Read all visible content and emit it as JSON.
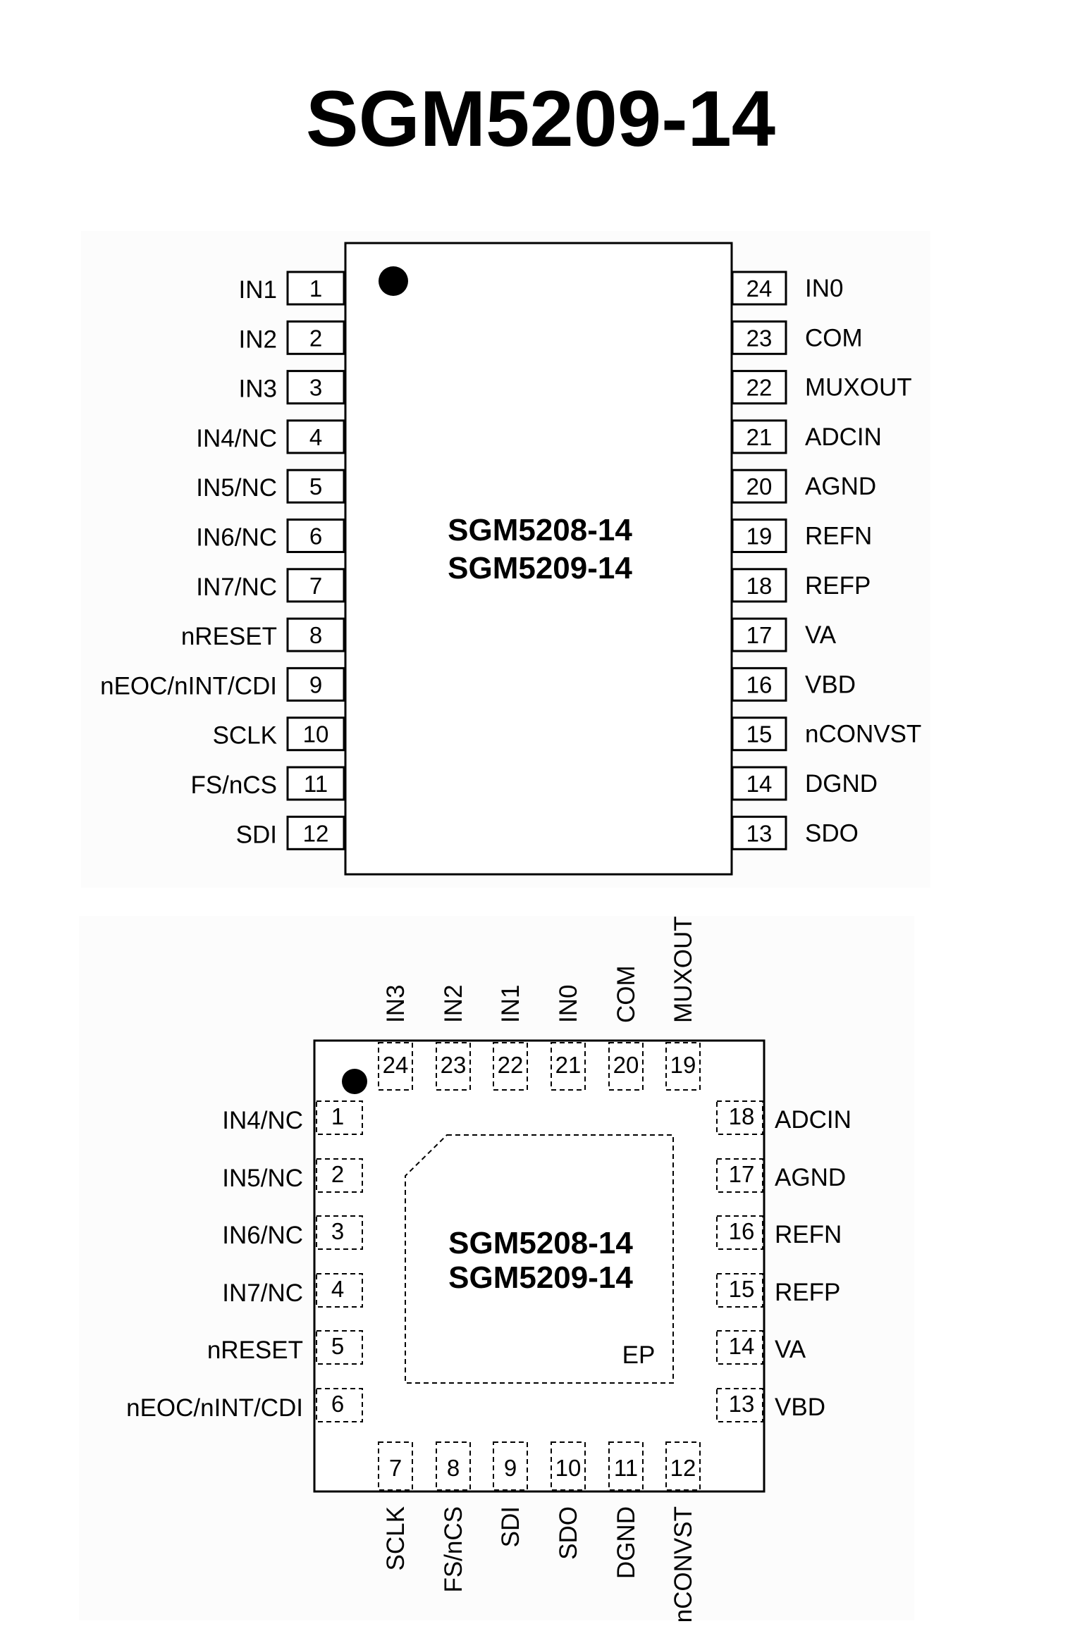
{
  "title": "SGM5209-14",
  "package_a": {
    "part_names": [
      "SGM5208-14",
      "SGM5209-14"
    ],
    "left_pins": [
      {
        "num": "1",
        "name": "IN1"
      },
      {
        "num": "2",
        "name": "IN2"
      },
      {
        "num": "3",
        "name": "IN3"
      },
      {
        "num": "4",
        "name": "IN4/NC"
      },
      {
        "num": "5",
        "name": "IN5/NC"
      },
      {
        "num": "6",
        "name": "IN6/NC"
      },
      {
        "num": "7",
        "name": "IN7/NC"
      },
      {
        "num": "8",
        "name": "nRESET"
      },
      {
        "num": "9",
        "name": "nEOC/nINT/CDI"
      },
      {
        "num": "10",
        "name": "SCLK"
      },
      {
        "num": "11",
        "name": "FS/nCS"
      },
      {
        "num": "12",
        "name": "SDI"
      }
    ],
    "right_pins": [
      {
        "num": "24",
        "name": "IN0"
      },
      {
        "num": "23",
        "name": "COM"
      },
      {
        "num": "22",
        "name": "MUXOUT"
      },
      {
        "num": "21",
        "name": "ADCIN"
      },
      {
        "num": "20",
        "name": "AGND"
      },
      {
        "num": "19",
        "name": "REFN"
      },
      {
        "num": "18",
        "name": "REFP"
      },
      {
        "num": "17",
        "name": "VA"
      },
      {
        "num": "16",
        "name": "VBD"
      },
      {
        "num": "15",
        "name": "nCONVST"
      },
      {
        "num": "14",
        "name": "DGND"
      },
      {
        "num": "13",
        "name": "SDO"
      }
    ]
  },
  "package_b": {
    "part_names": [
      "SGM5208-14",
      "SGM5209-14"
    ],
    "exposed_pad_label": "EP",
    "top_pins": [
      {
        "num": "24",
        "name": "IN3"
      },
      {
        "num": "23",
        "name": "IN2"
      },
      {
        "num": "22",
        "name": "IN1"
      },
      {
        "num": "21",
        "name": "IN0"
      },
      {
        "num": "20",
        "name": "COM"
      },
      {
        "num": "19",
        "name": "MUXOUT"
      }
    ],
    "left_pins": [
      {
        "num": "1",
        "name": "IN4/NC"
      },
      {
        "num": "2",
        "name": "IN5/NC"
      },
      {
        "num": "3",
        "name": "IN6/NC"
      },
      {
        "num": "4",
        "name": "IN7/NC"
      },
      {
        "num": "5",
        "name": "nRESET"
      },
      {
        "num": "6",
        "name": "nEOC/nINT/CDI"
      }
    ],
    "right_pins": [
      {
        "num": "18",
        "name": "ADCIN"
      },
      {
        "num": "17",
        "name": "AGND"
      },
      {
        "num": "16",
        "name": "REFN"
      },
      {
        "num": "15",
        "name": "REFP"
      },
      {
        "num": "14",
        "name": "VA"
      },
      {
        "num": "13",
        "name": "VBD"
      }
    ],
    "bottom_pins": [
      {
        "num": "7",
        "name": "SCLK"
      },
      {
        "num": "8",
        "name": "FS/nCS"
      },
      {
        "num": "9",
        "name": "SDI"
      },
      {
        "num": "10",
        "name": "SDO"
      },
      {
        "num": "11",
        "name": "DGND"
      },
      {
        "num": "12",
        "name": "nCONVST"
      }
    ]
  }
}
